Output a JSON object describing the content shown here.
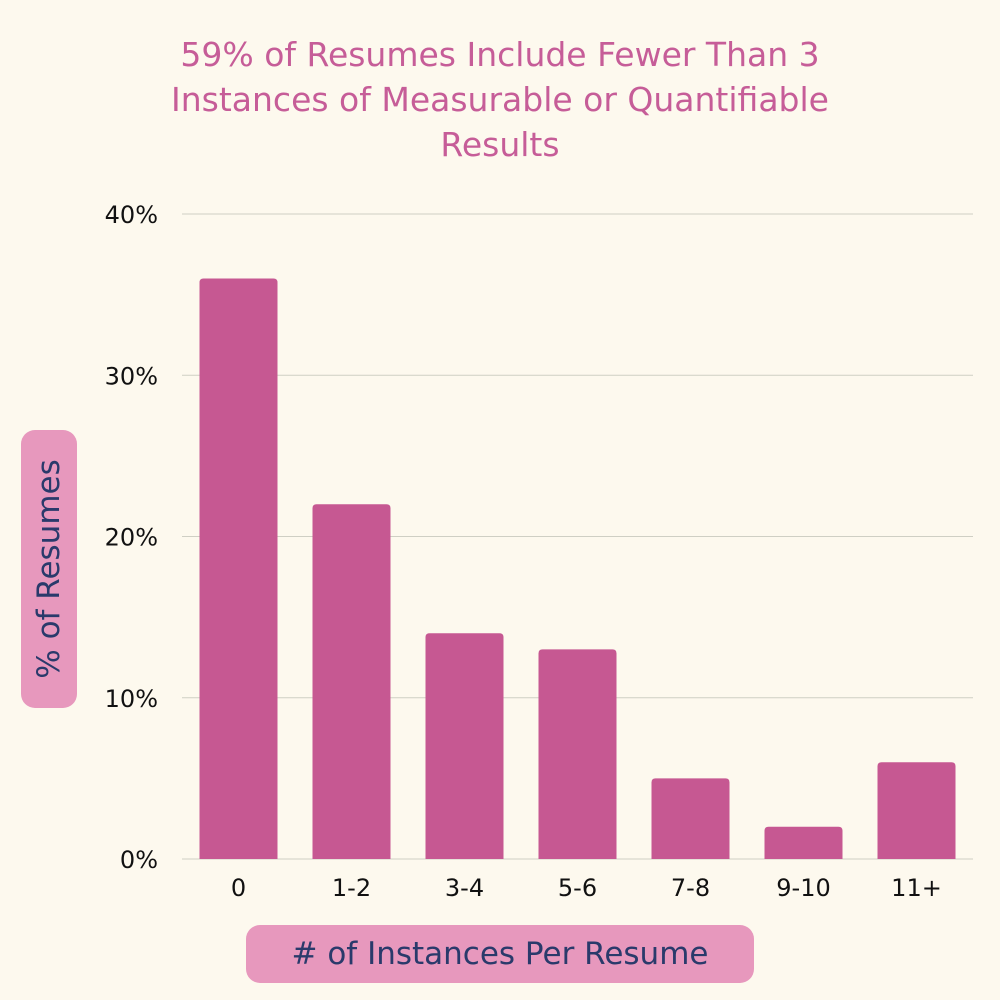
{
  "chart_data": {
    "type": "bar",
    "title": "59% of Resumes Include Fewer Than 3\nInstances of Measurable or Quantifiable\nResults",
    "xlabel": "# of Instances Per Resume",
    "ylabel": "% of Resumes",
    "categories": [
      "0",
      "1-2",
      "3-4",
      "5-6",
      "7-8",
      "9-10",
      "11+"
    ],
    "values": [
      36,
      22,
      14,
      13,
      5,
      2,
      6
    ],
    "ylim": [
      0,
      40
    ],
    "yticks": [
      0,
      10,
      20,
      30,
      40
    ],
    "ytick_labels": [
      "0%",
      "10%",
      "20%",
      "30%",
      "40%"
    ],
    "grid": true,
    "colors": {
      "bar": "#c65892",
      "title": "#c65d98",
      "label_text": "#2a3a6b",
      "label_pill": "#e798bd",
      "grid": "#cfcfc4",
      "background": "#fdf9ee"
    }
  }
}
